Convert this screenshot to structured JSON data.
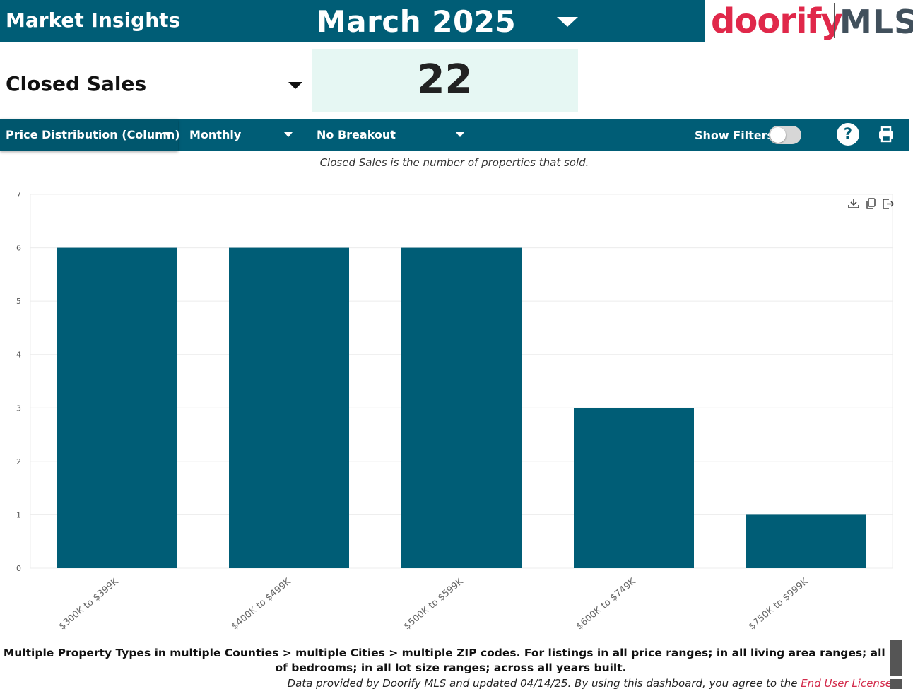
{
  "header": {
    "title": "Market Insights",
    "month": "March 2025"
  },
  "logo": {
    "brand": "doorify",
    "suffix": "MLS"
  },
  "metric": {
    "label": "Closed Sales",
    "value": "22"
  },
  "toolbar": {
    "view_label": "Price Distribution (Column)",
    "period_label": "Monthly",
    "breakout_label": "No Breakout",
    "filters_label": "Show Filters:",
    "filters_on": false,
    "help_glyph": "?"
  },
  "description": "Closed Sales is the number of properties that sold.",
  "chart_data": {
    "type": "bar",
    "categories": [
      "$300K to $399K",
      "$400K to $499K",
      "$500K to $599K",
      "$600K to $749K",
      "$750K to $999K"
    ],
    "values": [
      6,
      6,
      6,
      3,
      1
    ],
    "ylim": [
      0,
      7
    ],
    "yticks": [
      0,
      1,
      2,
      3,
      4,
      5,
      6,
      7
    ],
    "grid": true,
    "bar_color": "#005d76"
  },
  "footer": {
    "summary": "Multiple Property Types in multiple Counties > multiple Cities > multiple ZIP codes. For listings in all price ranges; in all living area ranges; all # of bedrooms; in all lot size ranges; across all years built.",
    "disclaimer": "Data provided by Doorify MLS and updated 04/14/25.  By using this dashboard, you agree to the",
    "link_label": "End User License"
  },
  "colors": {
    "primary": "#005d76",
    "brand_red": "#e0284a",
    "kpi_bg": "#e6f7f3"
  }
}
